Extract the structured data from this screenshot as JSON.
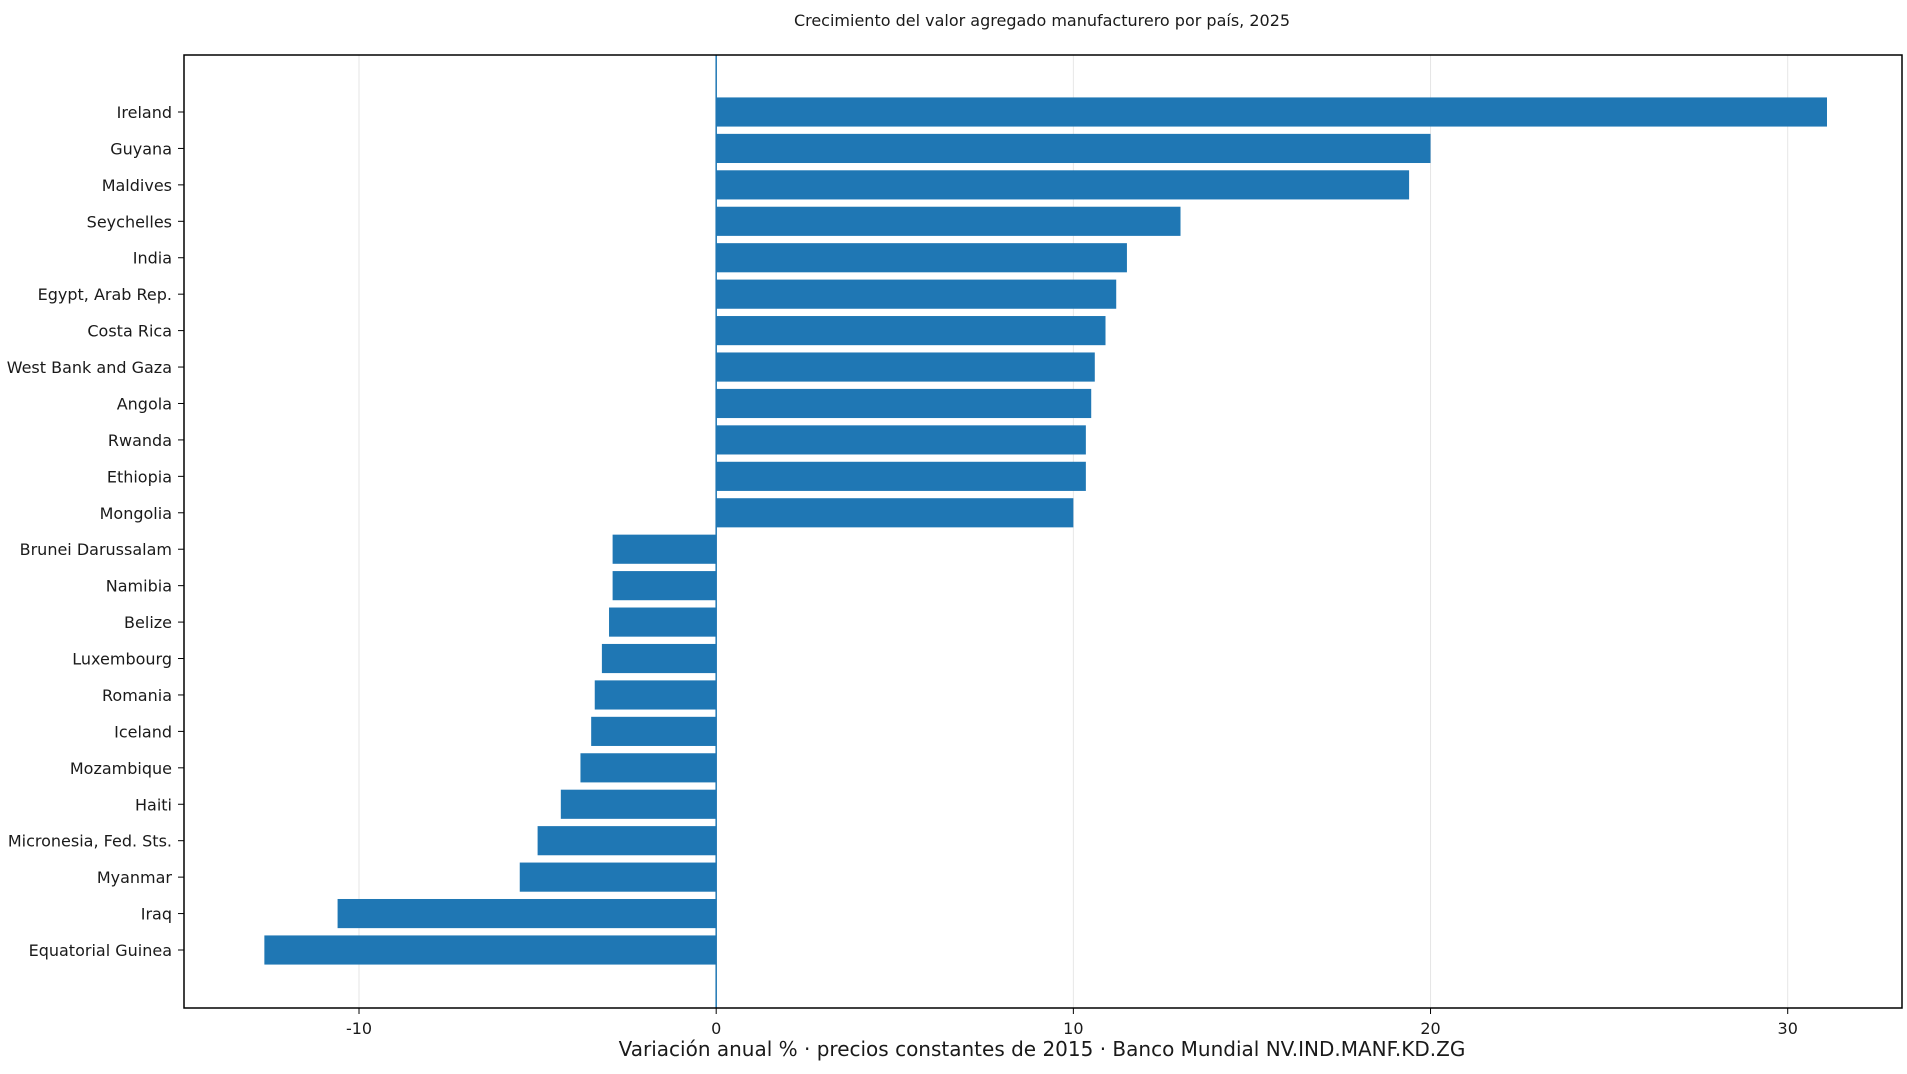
{
  "chart_data": {
    "type": "bar",
    "orientation": "horizontal",
    "title": "Crecimiento del valor agregado manufacturero por país, 2025",
    "xlabel": "Variación anual % · precios constantes de 2015 · Banco Mundial NV.IND.MANF.KD.ZG",
    "ylabel": "",
    "xlim": [
      -14.9,
      33.2
    ],
    "xticks": [
      -10,
      0,
      10,
      20,
      30
    ],
    "xtick_labels": [
      "-10",
      "0",
      "10",
      "20",
      "30"
    ],
    "grid": "vertical",
    "bar_color": "#1f77b4",
    "categories": [
      "Ireland",
      "Guyana",
      "Maldives",
      "Seychelles",
      "India",
      "Egypt, Arab Rep.",
      "Costa Rica",
      "West Bank and Gaza",
      "Angola",
      "Rwanda",
      "Ethiopia",
      "Mongolia",
      "Brunei Darussalam",
      "Namibia",
      "Belize",
      "Luxembourg",
      "Romania",
      "Iceland",
      "Mozambique",
      "Haiti",
      "Micronesia, Fed. Sts.",
      "Myanmar",
      "Iraq",
      "Equatorial Guinea"
    ],
    "values": [
      31.1,
      20.0,
      19.4,
      13.0,
      11.5,
      11.2,
      10.9,
      10.6,
      10.5,
      10.35,
      10.35,
      10.0,
      -2.9,
      -2.9,
      -3.0,
      -3.2,
      -3.4,
      -3.5,
      -3.8,
      -4.35,
      -5.0,
      -5.5,
      -10.6,
      -12.65
    ]
  }
}
